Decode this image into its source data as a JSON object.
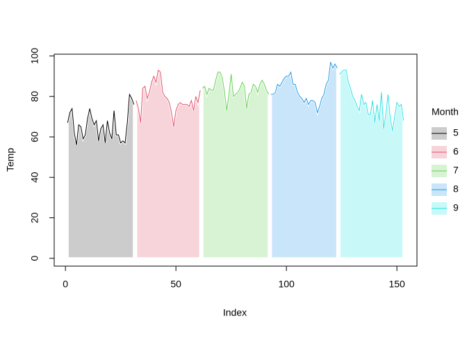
{
  "chart_data": {
    "type": "area",
    "x_label": "Index",
    "y_label": "Temp",
    "legend_title": "Month",
    "xlim": [
      -5.08,
      159.08
    ],
    "ylim": [
      -3.88,
      100.88
    ],
    "xticks": [
      0,
      50,
      100,
      150
    ],
    "yticks": [
      0,
      20,
      40,
      60,
      80,
      100
    ],
    "legend": "right",
    "series": [
      {
        "name": "5",
        "color": "#000000",
        "fill": "#cccccc",
        "x": [
          1,
          2,
          3,
          4,
          5,
          6,
          7,
          8,
          9,
          10,
          11,
          12,
          13,
          14,
          15,
          16,
          17,
          18,
          19,
          20,
          21,
          22,
          23,
          24,
          25,
          26,
          27,
          28,
          29,
          30,
          31
        ],
        "values": [
          67,
          72,
          74,
          62,
          56,
          66,
          65,
          59,
          61,
          69,
          74,
          69,
          66,
          68,
          58,
          64,
          66,
          57,
          68,
          62,
          59,
          73,
          61,
          61,
          57,
          58,
          57,
          67,
          81,
          79,
          76
        ]
      },
      {
        "name": "6",
        "color": "#df536b",
        "fill": "#f7d4da",
        "x": [
          32,
          33,
          34,
          35,
          36,
          37,
          38,
          39,
          40,
          41,
          42,
          43,
          44,
          45,
          46,
          47,
          48,
          49,
          50,
          51,
          52,
          53,
          54,
          55,
          56,
          57,
          58,
          59,
          60,
          61
        ],
        "values": [
          78,
          74,
          67,
          84,
          85,
          79,
          82,
          87,
          90,
          87,
          93,
          92,
          82,
          80,
          79,
          77,
          72,
          65,
          73,
          76,
          77,
          76,
          76,
          76,
          75,
          78,
          73,
          80,
          77,
          83
        ]
      },
      {
        "name": "7",
        "color": "#61d04f",
        "fill": "#d8f3d3",
        "x": [
          62,
          63,
          64,
          65,
          66,
          67,
          68,
          69,
          70,
          71,
          72,
          73,
          74,
          75,
          76,
          77,
          78,
          79,
          80,
          81,
          82,
          83,
          84,
          85,
          86,
          87,
          88,
          89,
          90,
          91,
          92
        ],
        "values": [
          84,
          85,
          81,
          84,
          83,
          83,
          88,
          92,
          92,
          89,
          82,
          73,
          81,
          91,
          80,
          81,
          82,
          84,
          87,
          85,
          74,
          81,
          82,
          86,
          85,
          82,
          86,
          88,
          86,
          83,
          81
        ]
      },
      {
        "name": "8",
        "color": "#2297e6",
        "fill": "#c8e5f9",
        "x": [
          93,
          94,
          95,
          96,
          97,
          98,
          99,
          100,
          101,
          102,
          103,
          104,
          105,
          106,
          107,
          108,
          109,
          110,
          111,
          112,
          113,
          114,
          115,
          116,
          117,
          118,
          119,
          120,
          121,
          122,
          123
        ],
        "values": [
          81,
          81,
          82,
          86,
          85,
          87,
          89,
          90,
          90,
          92,
          86,
          86,
          82,
          80,
          79,
          77,
          79,
          76,
          78,
          78,
          77,
          72,
          75,
          79,
          81,
          86,
          88,
          97,
          94,
          96,
          94
        ]
      },
      {
        "name": "9",
        "color": "#28e2e5",
        "fill": "#c9f8f8",
        "x": [
          124,
          125,
          126,
          127,
          128,
          129,
          130,
          131,
          132,
          133,
          134,
          135,
          136,
          137,
          138,
          139,
          140,
          141,
          142,
          143,
          144,
          145,
          146,
          147,
          148,
          149,
          150,
          151,
          152,
          153
        ],
        "values": [
          91,
          92,
          93,
          93,
          87,
          84,
          80,
          78,
          75,
          73,
          81,
          76,
          77,
          71,
          71,
          78,
          67,
          76,
          68,
          82,
          64,
          71,
          81,
          69,
          63,
          70,
          77,
          75,
          76,
          68
        ]
      }
    ]
  }
}
